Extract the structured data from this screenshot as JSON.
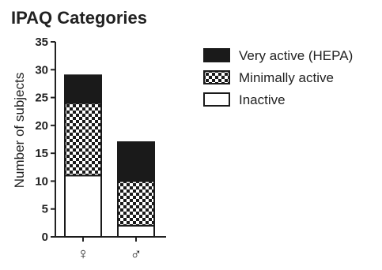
{
  "chart_data": {
    "type": "bar",
    "stacked": true,
    "title": "IPAQ Categories",
    "xlabel": "",
    "ylabel": "Number of subjects",
    "ylim": [
      0,
      35
    ],
    "yticks": [
      0,
      5,
      10,
      15,
      20,
      25,
      30,
      35
    ],
    "categories": [
      "♀",
      "♂"
    ],
    "series": [
      {
        "name": "Inactive",
        "values": [
          11,
          2
        ],
        "fill": "white"
      },
      {
        "name": "Minimally active",
        "values": [
          13,
          8
        ],
        "fill": "checker"
      },
      {
        "name": "Very active (HEPA)",
        "values": [
          5,
          7
        ],
        "fill": "black"
      }
    ],
    "legend": {
      "position": "right",
      "order": [
        "Very active (HEPA)",
        "Minimally active",
        "Inactive"
      ]
    },
    "grid": false,
    "colors": {
      "dark": "#1a1a1a",
      "light": "#ffffff",
      "axis": "#222222"
    }
  }
}
